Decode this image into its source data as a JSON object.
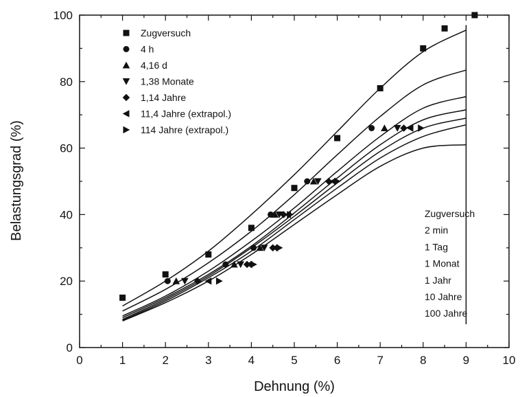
{
  "chart_data": {
    "type": "scatter",
    "xlabel": "Dehnung (%)",
    "ylabel": "Belastungsgrad (%)",
    "xlim": [
      0,
      10
    ],
    "ylim": [
      0,
      100
    ],
    "x_ticks": [
      "0",
      "1",
      "2",
      "3",
      "4",
      "5",
      "6",
      "7",
      "8",
      "9",
      "10"
    ],
    "y_ticks": [
      "0",
      "20",
      "40",
      "60",
      "80",
      "100"
    ],
    "grid": false,
    "legend_position": "top-left",
    "series": [
      {
        "name": "Zugversuch",
        "marker": "square",
        "points": [
          [
            1.0,
            15
          ],
          [
            2.0,
            22
          ],
          [
            3.0,
            28
          ],
          [
            4.0,
            36
          ],
          [
            5.0,
            48
          ],
          [
            6.0,
            63
          ],
          [
            7.0,
            78
          ],
          [
            8.0,
            90
          ],
          [
            8.5,
            96
          ],
          [
            9.2,
            100
          ]
        ]
      },
      {
        "name": "4 h",
        "marker": "circle",
        "points": [
          [
            2.05,
            20
          ],
          [
            3.4,
            25
          ],
          [
            4.05,
            30
          ],
          [
            4.45,
            40
          ],
          [
            5.3,
            50
          ],
          [
            6.8,
            66
          ]
        ]
      },
      {
        "name": "4,16 d",
        "marker": "triangle-up",
        "points": [
          [
            2.25,
            20
          ],
          [
            3.6,
            25
          ],
          [
            4.2,
            30
          ],
          [
            4.55,
            40
          ],
          [
            5.45,
            50
          ],
          [
            7.1,
            66
          ]
        ]
      },
      {
        "name": "1,38 Monate",
        "marker": "triangle-down",
        "points": [
          [
            2.45,
            20
          ],
          [
            3.75,
            25
          ],
          [
            4.3,
            30
          ],
          [
            4.65,
            40
          ],
          [
            5.55,
            50
          ],
          [
            7.4,
            66
          ]
        ]
      },
      {
        "name": "1,14 Jahre",
        "marker": "diamond",
        "points": [
          [
            2.75,
            20
          ],
          [
            3.9,
            25
          ],
          [
            4.5,
            30
          ],
          [
            4.75,
            40
          ],
          [
            5.8,
            50
          ],
          [
            7.55,
            66
          ]
        ]
      },
      {
        "name": "11,4 Jahre (extrapol.)",
        "marker": "triangle-left",
        "points": [
          [
            3.0,
            20
          ],
          [
            3.95,
            25
          ],
          [
            4.55,
            30
          ],
          [
            4.85,
            40
          ],
          [
            5.9,
            50
          ],
          [
            7.7,
            66
          ]
        ]
      },
      {
        "name": "114 Jahre (extrapol.)",
        "marker": "triangle-right",
        "points": [
          [
            3.25,
            20
          ],
          [
            4.05,
            25
          ],
          [
            4.65,
            30
          ],
          [
            4.9,
            40
          ],
          [
            6.0,
            50
          ],
          [
            7.95,
            66
          ]
        ]
      }
    ],
    "curves": [
      {
        "label": "Zugversuch",
        "points": [
          [
            1,
            12.5
          ],
          [
            2,
            20
          ],
          [
            3,
            29
          ],
          [
            4,
            40
          ],
          [
            5,
            52
          ],
          [
            6,
            65
          ],
          [
            7,
            78
          ],
          [
            8,
            89
          ],
          [
            9,
            95.5
          ]
        ]
      },
      {
        "label": "2 min",
        "points": [
          [
            1,
            11
          ],
          [
            2,
            17.5
          ],
          [
            3,
            25.5
          ],
          [
            4,
            35
          ],
          [
            5,
            46
          ],
          [
            6,
            58
          ],
          [
            7,
            69.5
          ],
          [
            8,
            79
          ],
          [
            9,
            83.5
          ]
        ]
      },
      {
        "label": "1 Tag",
        "points": [
          [
            1,
            9.5
          ],
          [
            2,
            15.5
          ],
          [
            3,
            23
          ],
          [
            4,
            32
          ],
          [
            5,
            42
          ],
          [
            6,
            53
          ],
          [
            7,
            63.5
          ],
          [
            8,
            72
          ],
          [
            9,
            75.5
          ]
        ]
      },
      {
        "label": "1 Monat",
        "points": [
          [
            1,
            9
          ],
          [
            2,
            15
          ],
          [
            3,
            22
          ],
          [
            4,
            30.5
          ],
          [
            5,
            40.5
          ],
          [
            6,
            51
          ],
          [
            7,
            61
          ],
          [
            8,
            68.5
          ],
          [
            9,
            71.5
          ]
        ]
      },
      {
        "label": "1 Jahr",
        "points": [
          [
            1,
            8.5
          ],
          [
            2,
            14.5
          ],
          [
            3,
            21.5
          ],
          [
            4,
            30
          ],
          [
            5,
            39.5
          ],
          [
            6,
            49.5
          ],
          [
            7,
            59
          ],
          [
            8,
            66
          ],
          [
            9,
            69
          ]
        ]
      },
      {
        "label": "10 Jahre",
        "points": [
          [
            1,
            8.2
          ],
          [
            2,
            14
          ],
          [
            3,
            21
          ],
          [
            4,
            29
          ],
          [
            5,
            38.5
          ],
          [
            6,
            48
          ],
          [
            7,
            57
          ],
          [
            8,
            63.5
          ],
          [
            9,
            67
          ]
        ]
      },
      {
        "label": "100 Jahre",
        "points": [
          [
            1,
            8
          ],
          [
            2,
            13.5
          ],
          [
            3,
            20
          ],
          [
            4,
            28
          ],
          [
            5,
            37
          ],
          [
            6,
            46
          ],
          [
            7,
            54.5
          ],
          [
            8,
            60
          ],
          [
            9,
            61
          ]
        ]
      }
    ],
    "vertical_line": {
      "x": 9,
      "y_from": 7,
      "y_to": 97
    },
    "curve_labels": [
      "Zugversuch",
      "2 min",
      "1 Tag",
      "1 Monat",
      "1 Jahr",
      "10 Jahre",
      "100 Jahre"
    ]
  }
}
